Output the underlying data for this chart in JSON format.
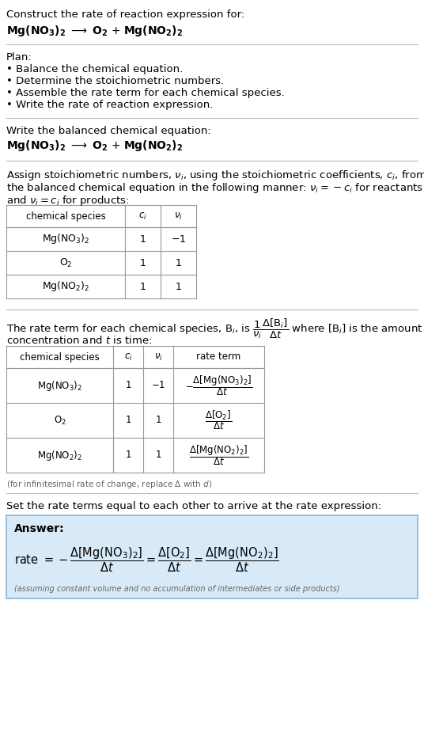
{
  "bg_color": "#ffffff",
  "text_color": "#000000",
  "gray_text": "#666666",
  "answer_bg": "#d8eaf7",
  "answer_border": "#8ab4d4",
  "title_text": "Construct the rate of reaction expression for:",
  "plan_header": "Plan:",
  "plan_items": [
    "• Balance the chemical equation.",
    "• Determine the stoichiometric numbers.",
    "• Assemble the rate term for each chemical species.",
    "• Write the rate of reaction expression."
  ],
  "balanced_header": "Write the balanced chemical equation:",
  "assign_text1": "Assign stoichiometric numbers, $\\nu_i$, using the stoichiometric coefficients, $c_i$, from",
  "assign_text2": "the balanced chemical equation in the following manner: $\\nu_i = -c_i$ for reactants",
  "assign_text3": "and $\\nu_i = c_i$ for products:",
  "rate_text1": "The rate term for each chemical species, B$_i$, is $\\dfrac{1}{\\nu_i}\\dfrac{\\Delta[\\mathrm{B}_i]}{\\Delta t}$ where [B$_i$] is the amount",
  "rate_text2": "concentration and $t$ is time:",
  "infinitesimal_note": "(for infinitesimal rate of change, replace Δ with $d$)",
  "set_equal_text": "Set the rate terms equal to each other to arrive at the rate expression:",
  "answer_label": "Answer:",
  "assumption_note": "(assuming constant volume and no accumulation of intermediates or side products)"
}
